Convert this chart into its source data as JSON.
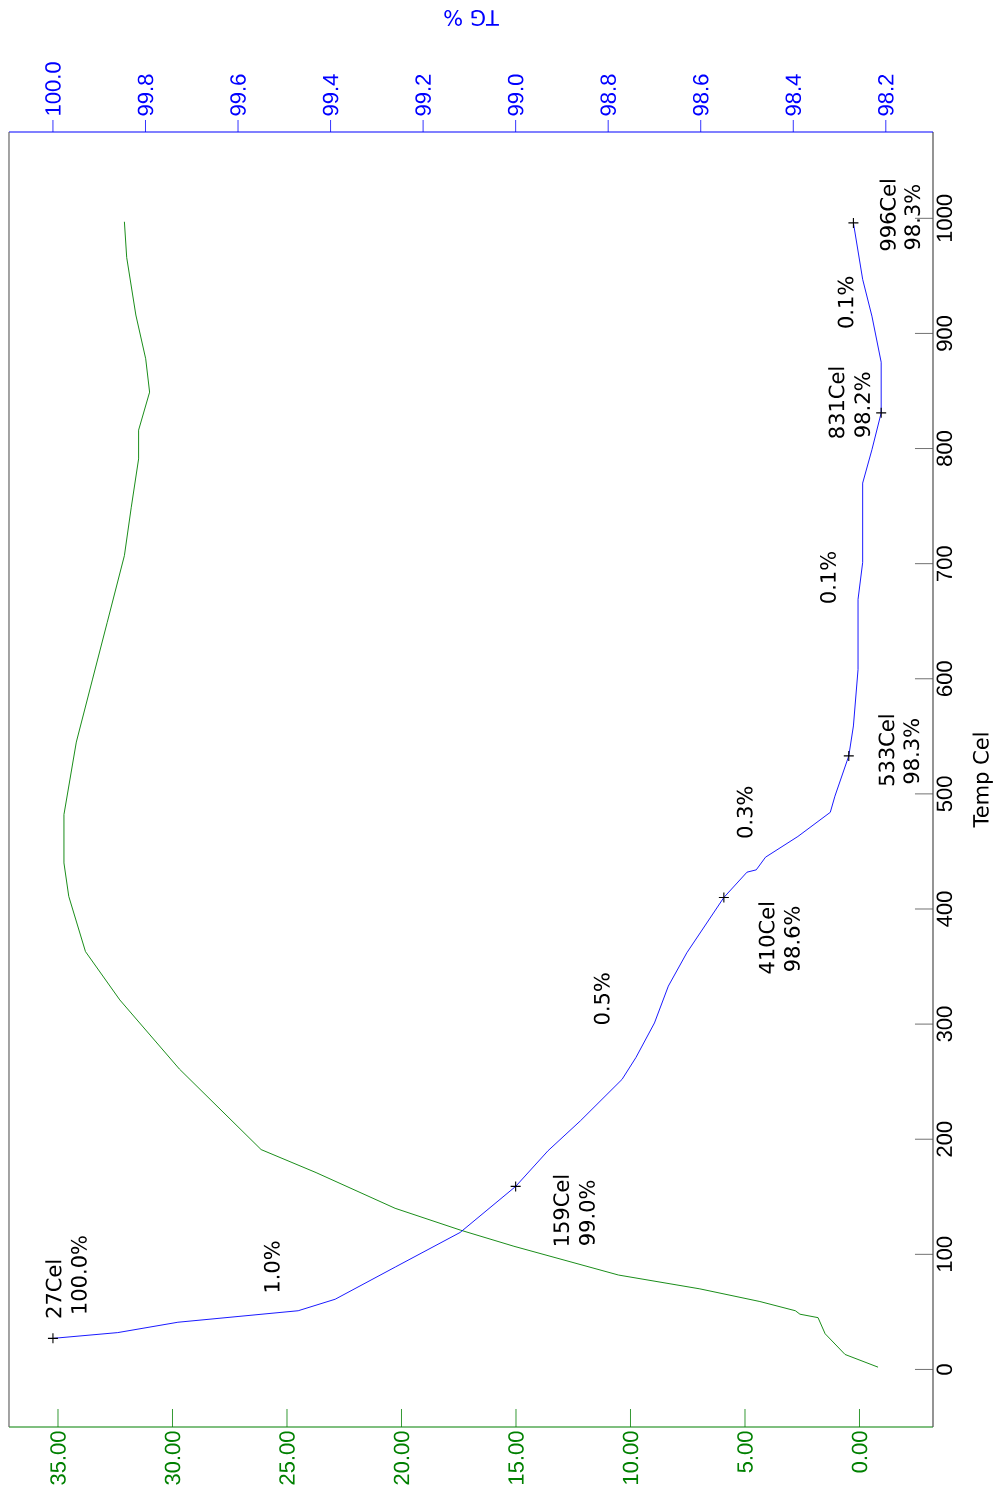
{
  "chart_data": {
    "type": "line",
    "ylabel": "Temp Cel",
    "x2label": "TG %",
    "ylim": [
      -50,
      1075
    ],
    "xlim": [
      37.14,
      -3.21
    ],
    "x2lim": [
      100.095,
      98.098
    ],
    "yticks": [
      0,
      100,
      200,
      300,
      400,
      500,
      600,
      700,
      800,
      900,
      1000
    ],
    "xticks": [
      {
        "value": 35,
        "label": "35.00"
      },
      {
        "value": 30,
        "label": "30.00"
      },
      {
        "value": 25,
        "label": "25.00"
      },
      {
        "value": 20,
        "label": "20.00"
      },
      {
        "value": 15,
        "label": "15.00"
      },
      {
        "value": 10,
        "label": "10.00"
      },
      {
        "value": 5,
        "label": "5.00"
      },
      {
        "value": 0,
        "label": "0.00"
      }
    ],
    "x2ticks": [
      {
        "value": 100.0,
        "label": "100.0"
      },
      {
        "value": 99.8,
        "label": "99.8"
      },
      {
        "value": 99.6,
        "label": "99.6"
      },
      {
        "value": 99.4,
        "label": "99.4"
      },
      {
        "value": 99.2,
        "label": "99.2"
      },
      {
        "value": 99.0,
        "label": "99.0"
      },
      {
        "value": 98.8,
        "label": "98.8"
      },
      {
        "value": 98.6,
        "label": "98.6"
      },
      {
        "value": 98.4,
        "label": "98.4"
      },
      {
        "value": 98.2,
        "label": "98.2"
      }
    ],
    "series": [
      {
        "color": "#008000",
        "x": [
          -0.81,
          0.63,
          1.5,
          1.81,
          2.6,
          2.8,
          4.35,
          6.97,
          10.52,
          15.09,
          17.42,
          20.28,
          23.73,
          26.13,
          29.7,
          32.3,
          33.8,
          34.53,
          34.74,
          34.74,
          34.2,
          33.5,
          32.85,
          32.1,
          31.8,
          31.48,
          31.48,
          31.0,
          31.17,
          31.6,
          32.0,
          32.1
        ],
        "values": [
          2,
          13,
          31,
          45,
          48,
          51,
          59,
          70,
          82,
          107,
          121,
          140,
          171,
          191,
          261,
          321,
          363,
          411,
          440,
          482,
          545,
          599,
          649,
          707,
          749,
          791,
          816,
          849,
          878,
          916,
          966,
          997
        ]
      },
      {
        "color": "#0000ff",
        "axis": "x2",
        "x": [
          100.0,
          99.86,
          99.73,
          99.6,
          99.47,
          99.39,
          99.26,
          99.12,
          99.0,
          98.93,
          98.86,
          98.77,
          98.74,
          98.7,
          98.67,
          98.63,
          98.55,
          98.5,
          98.48,
          98.46,
          98.39,
          98.32,
          98.31,
          98.28,
          98.27,
          98.26,
          98.26,
          98.25,
          98.25,
          98.23,
          98.21,
          98.21,
          98.23,
          98.25,
          98.27
        ],
        "values": [
          27,
          32,
          41,
          46,
          51,
          61,
          89,
          119,
          159,
          190,
          216,
          252,
          271,
          301,
          333,
          362,
          410,
          432,
          434,
          445,
          463,
          484,
          498,
          533,
          559,
          608,
          669,
          701,
          770,
          799,
          831,
          875,
          915,
          947,
          996
        ]
      },
      {
        "type": "scatter",
        "marker": "cross",
        "color": "#000000",
        "axis": "x2",
        "x": [
          100.0,
          99.0,
          98.55,
          98.28,
          98.21,
          98.27
        ],
        "values": [
          27,
          159,
          410,
          533,
          831,
          996
        ]
      }
    ],
    "annotations": [
      "27Cel",
      "100.0%",
      "1.0%",
      "159Cel",
      "99.0%",
      "0.5%",
      "410Cel",
      "98.6%",
      "0.3%",
      "533Cel",
      "98.3%",
      "0.1%",
      "831Cel",
      "98.2%",
      "0.1%",
      "996Cel",
      "98.3%"
    ]
  }
}
